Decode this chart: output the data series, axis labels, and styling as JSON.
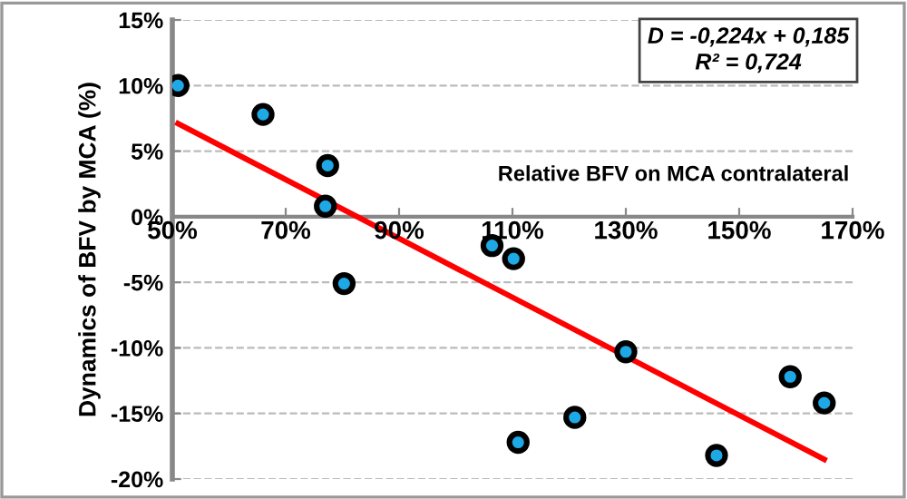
{
  "chart_data": {
    "type": "scatter",
    "xlabel": "Relative BFV on MCA contralateral",
    "ylabel": "Dynamics of BFV by MCA (%)",
    "annotations": [
      "D = -0,224x + 0,185\nR² = 0,724"
    ],
    "series": [
      {
        "type": "scatter",
        "color": "#1ea8e6",
        "marker": "circle",
        "x": [
          51,
          66,
          77.4,
          77,
          80.3,
          106.4,
          110.2,
          111,
          121,
          130,
          146,
          159,
          165
        ],
        "values": [
          10,
          7.8,
          3.9,
          0.8,
          -5.1,
          -2.2,
          -3.2,
          -17.2,
          -15.3,
          -10.3,
          -18.2,
          -12.2,
          -14.2
        ]
      },
      {
        "type": "line",
        "color": "#ff0000",
        "x": [
          51,
          165
        ],
        "values": [
          7.1,
          -18.5
        ]
      }
    ],
    "xlim": [
      50,
      170
    ],
    "ylim": [
      -20,
      15
    ],
    "xticks": [
      {
        "value": 50,
        "label": "50%"
      },
      {
        "value": 70,
        "label": "70%"
      },
      {
        "value": 90,
        "label": "90%"
      },
      {
        "value": 110,
        "label": "110%"
      },
      {
        "value": 130,
        "label": "130%"
      },
      {
        "value": 150,
        "label": "150%"
      },
      {
        "value": 170,
        "label": "170%"
      }
    ],
    "yticks": [
      {
        "value": -20,
        "label": "-20%"
      },
      {
        "value": -15,
        "label": "-15%"
      },
      {
        "value": -10,
        "label": "-10%"
      },
      {
        "value": -5,
        "label": "-5%"
      },
      {
        "value": 0,
        "label": "0%"
      },
      {
        "value": 5,
        "label": "5%"
      },
      {
        "value": 10,
        "label": "10%"
      },
      {
        "value": 15,
        "label": "15%"
      }
    ],
    "grid": "y",
    "line_style": "solid",
    "legend": false
  }
}
